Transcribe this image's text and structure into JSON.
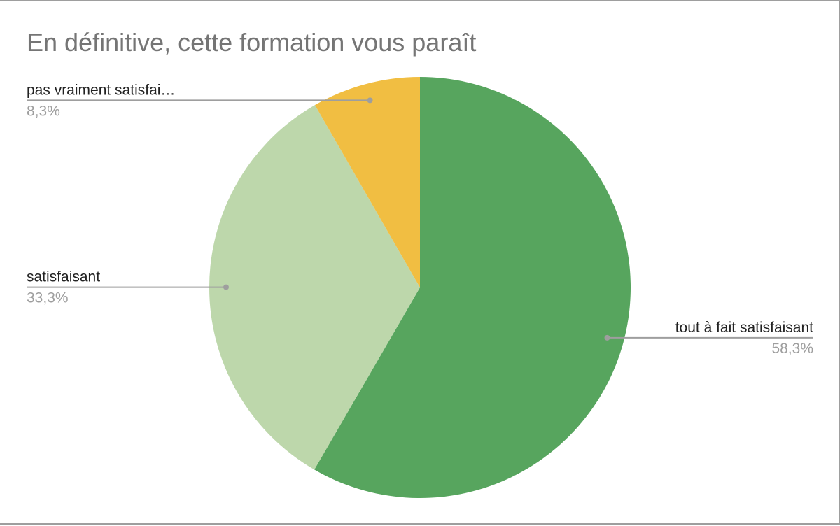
{
  "chart_data": {
    "type": "pie",
    "title": "En définitive, cette formation vous paraît",
    "slices": [
      {
        "label": "tout à fait satisfaisant",
        "value": 58.3,
        "percent_label": "58,3%",
        "color": "#57a55e"
      },
      {
        "label": "satisfaisant",
        "value": 33.3,
        "percent_label": "33,3%",
        "color": "#bdd7ab"
      },
      {
        "label": "pas vraiment satisfai…",
        "value": 8.3,
        "percent_label": "8,3%",
        "color": "#f1be42"
      }
    ],
    "legend": "none"
  }
}
